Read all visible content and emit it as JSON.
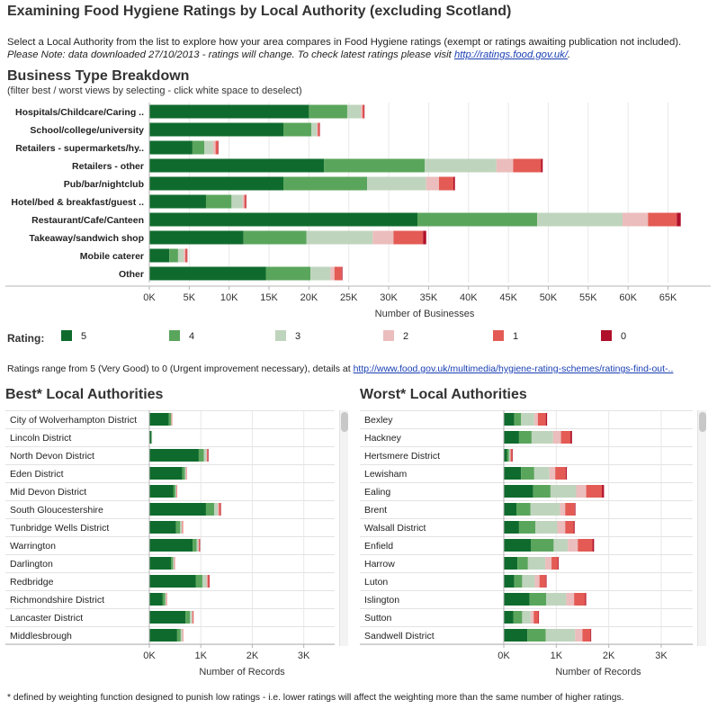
{
  "title": "Examining Food Hygiene Ratings by Local Authority  (excluding Scotland)",
  "intro": {
    "text": "Select a Local Authority from the list to explore how your area compares in Food Hygiene ratings (exempt or ratings awaiting publication not included).",
    "note": "Please Note: data downloaded 27/10/2013 - ratings will change. To check latest ratings please visit",
    "link": "http://ratings.food.gov.uk/",
    "end": "."
  },
  "colors": {
    "r5": "#0f6b2d",
    "r4": "#5aa55c",
    "r3": "#bfd4bd",
    "r2": "#ecbdbd",
    "r1": "#e35b54",
    "r0": "#b0102a",
    "grid": "#e8e8e8",
    "axis": "#b5b5b5",
    "row_sep": "#e3e3e3"
  },
  "business": {
    "title": "Business Type Breakdown",
    "subtitle": "(filter best / worst views by selecting - click white space to deselect)"
  },
  "legend": {
    "label": "Rating:",
    "items": [
      {
        "label": "5",
        "key": "r5"
      },
      {
        "label": "4",
        "key": "r4"
      },
      {
        "label": "3",
        "key": "r3"
      },
      {
        "label": "2",
        "key": "r2"
      },
      {
        "label": "1",
        "key": "r1"
      },
      {
        "label": "0",
        "key": "r0"
      }
    ]
  },
  "ratings_note": {
    "text": "Ratings range from 5 (Very Good) to 0 (Urgent improvement necessary), details at",
    "link": "http://www.food.gov.uk/multimedia/hygiene-rating-schemes/ratings-find-out-.."
  },
  "best": {
    "title": "Best* Local Authorities"
  },
  "worst": {
    "title": "Worst* Local Authorities"
  },
  "footnote": "* defined by weighting function designed to punish low ratings  - i.e. lower ratings will affect the weighting more than the same number of higher ratings.",
  "chart_data": [
    {
      "type": "bar",
      "orientation": "horizontal",
      "stacked": true,
      "title": "Business Type Breakdown",
      "xlabel": "Number of Businesses",
      "xlim": [
        0,
        69000
      ],
      "xticks": [
        0,
        5000,
        10000,
        15000,
        20000,
        25000,
        30000,
        35000,
        40000,
        45000,
        50000,
        55000,
        60000,
        65000
      ],
      "xtick_labels": [
        "0K",
        "5K",
        "10K",
        "15K",
        "20K",
        "25K",
        "30K",
        "35K",
        "40K",
        "45K",
        "50K",
        "55K",
        "60K",
        "65K"
      ],
      "categories": [
        "Hospitals/Childcare/Caring ..",
        "School/college/university",
        "Retailers - supermarkets/hy..",
        "Retailers - other",
        "Pub/bar/nightclub",
        "Hotel/bed & breakfast/guest ..",
        "Restaurant/Cafe/Canteen",
        "Takeaway/sandwich shop",
        "Mobile caterer",
        "Other"
      ],
      "series": [
        {
          "name": "5",
          "values": [
            20000,
            16800,
            5400,
            21900,
            16800,
            7100,
            33600,
            11800,
            2500,
            14600
          ]
        },
        {
          "name": "4",
          "values": [
            4800,
            3500,
            1500,
            12600,
            10500,
            3200,
            15000,
            7900,
            1100,
            5600
          ]
        },
        {
          "name": "3",
          "values": [
            1700,
            700,
            1100,
            9000,
            7400,
            1400,
            10700,
            8300,
            700,
            2500
          ]
        },
        {
          "name": "2",
          "values": [
            200,
            100,
            300,
            2100,
            1600,
            200,
            3200,
            2600,
            200,
            500
          ]
        },
        {
          "name": "1",
          "values": [
            200,
            200,
            300,
            3500,
            1800,
            200,
            3600,
            3700,
            200,
            900
          ]
        },
        {
          "name": "0",
          "values": [
            50,
            30,
            40,
            200,
            200,
            40,
            500,
            400,
            40,
            100
          ]
        }
      ]
    },
    {
      "type": "bar",
      "orientation": "horizontal",
      "stacked": true,
      "title": "Best* Local Authorities",
      "xlabel": "Number of Records",
      "xlim": [
        0,
        3600
      ],
      "xticks": [
        0,
        1000,
        2000,
        3000
      ],
      "xtick_labels": [
        "0K",
        "1K",
        "2K",
        "3K"
      ],
      "categories": [
        "City of Wolverhampton District",
        "Lincoln District",
        "North Devon District",
        "Eden District",
        "Mid Devon District",
        "South Gloucestershire",
        "Tunbridge Wells District",
        "Warrington",
        "Darlington",
        "Redbridge",
        "Richmondshire District",
        "Lancaster District",
        "Middlesbrough"
      ],
      "series": [
        {
          "name": "5",
          "values": [
            380,
            40,
            960,
            640,
            470,
            1100,
            520,
            840,
            420,
            900,
            260,
            700,
            540
          ]
        },
        {
          "name": "4",
          "values": [
            40,
            5,
            100,
            50,
            40,
            160,
            80,
            80,
            40,
            130,
            50,
            90,
            70
          ]
        },
        {
          "name": "3",
          "values": [
            10,
            2,
            50,
            20,
            15,
            70,
            30,
            30,
            20,
            80,
            15,
            40,
            30
          ]
        },
        {
          "name": "2",
          "values": [
            2,
            0,
            10,
            5,
            5,
            20,
            10,
            10,
            5,
            20,
            5,
            10,
            5
          ]
        },
        {
          "name": "1",
          "values": [
            5,
            0,
            20,
            10,
            10,
            30,
            15,
            15,
            10,
            30,
            10,
            20,
            10
          ]
        },
        {
          "name": "0",
          "values": [
            0,
            0,
            2,
            0,
            0,
            2,
            0,
            2,
            0,
            2,
            0,
            0,
            0
          ]
        }
      ]
    },
    {
      "type": "bar",
      "orientation": "horizontal",
      "stacked": true,
      "title": "Worst* Local Authorities",
      "xlabel": "Number of Records",
      "xlim": [
        0,
        3600
      ],
      "xticks": [
        0,
        1000,
        2000,
        3000
      ],
      "xtick_labels": [
        "0K",
        "1K",
        "2K",
        "3K"
      ],
      "categories": [
        "Bexley",
        "Hackney",
        "Hertsmere District",
        "Lewisham",
        "Ealing",
        "Brent",
        "Walsall District",
        "Enfield",
        "Harrow",
        "Luton",
        "Islington",
        "Sutton",
        "Sandwell District"
      ],
      "series": [
        {
          "name": "5",
          "values": [
            200,
            290,
            60,
            330,
            560,
            240,
            290,
            520,
            260,
            200,
            490,
            180,
            450
          ]
        },
        {
          "name": "4",
          "values": [
            130,
            240,
            40,
            250,
            330,
            270,
            310,
            430,
            200,
            150,
            320,
            170,
            350
          ]
        },
        {
          "name": "3",
          "values": [
            250,
            410,
            20,
            290,
            490,
            560,
            420,
            270,
            330,
            240,
            380,
            160,
            560
          ]
        },
        {
          "name": "2",
          "values": [
            70,
            150,
            10,
            110,
            190,
            100,
            150,
            190,
            120,
            90,
            150,
            60,
            140
          ]
        },
        {
          "name": "1",
          "values": [
            150,
            180,
            30,
            200,
            300,
            180,
            160,
            280,
            120,
            120,
            210,
            90,
            150
          ]
        },
        {
          "name": "0",
          "values": [
            25,
            30,
            5,
            20,
            40,
            15,
            20,
            30,
            15,
            15,
            20,
            10,
            15
          ]
        }
      ]
    }
  ]
}
